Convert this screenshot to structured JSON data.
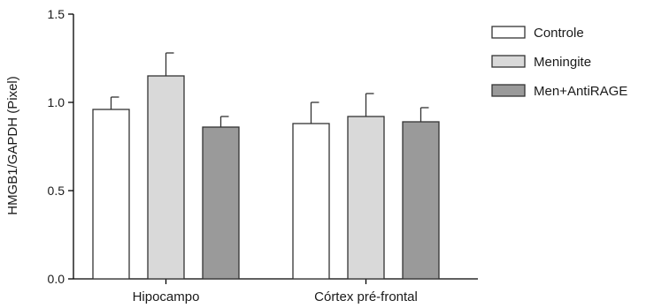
{
  "chart_data": {
    "type": "bar",
    "ylabel": "HMGB1/GAPDH (Pixel)",
    "xlabel": "",
    "title": "",
    "ylim": [
      0,
      1.5
    ],
    "yticks": [
      0.0,
      0.5,
      1.0,
      1.5
    ],
    "ytick_labels": [
      "0.0",
      "0.5",
      "1.0",
      "1.5"
    ],
    "categories": [
      "Hipocampo",
      "Córtex pré-frontal"
    ],
    "series": [
      {
        "name": "Controle",
        "color": "#ffffff",
        "values": [
          0.96,
          0.88
        ],
        "errors": [
          0.07,
          0.12
        ]
      },
      {
        "name": "Meningite",
        "color": "#d9d9d9",
        "values": [
          1.15,
          0.92
        ],
        "errors": [
          0.13,
          0.13
        ]
      },
      {
        "name": "Men+AntiRAGE",
        "color": "#9a9a9a",
        "values": [
          0.86,
          0.89
        ],
        "errors": [
          0.06,
          0.08
        ]
      }
    ],
    "error_bars": "upper",
    "legend_position": "top-right",
    "grid": false
  }
}
